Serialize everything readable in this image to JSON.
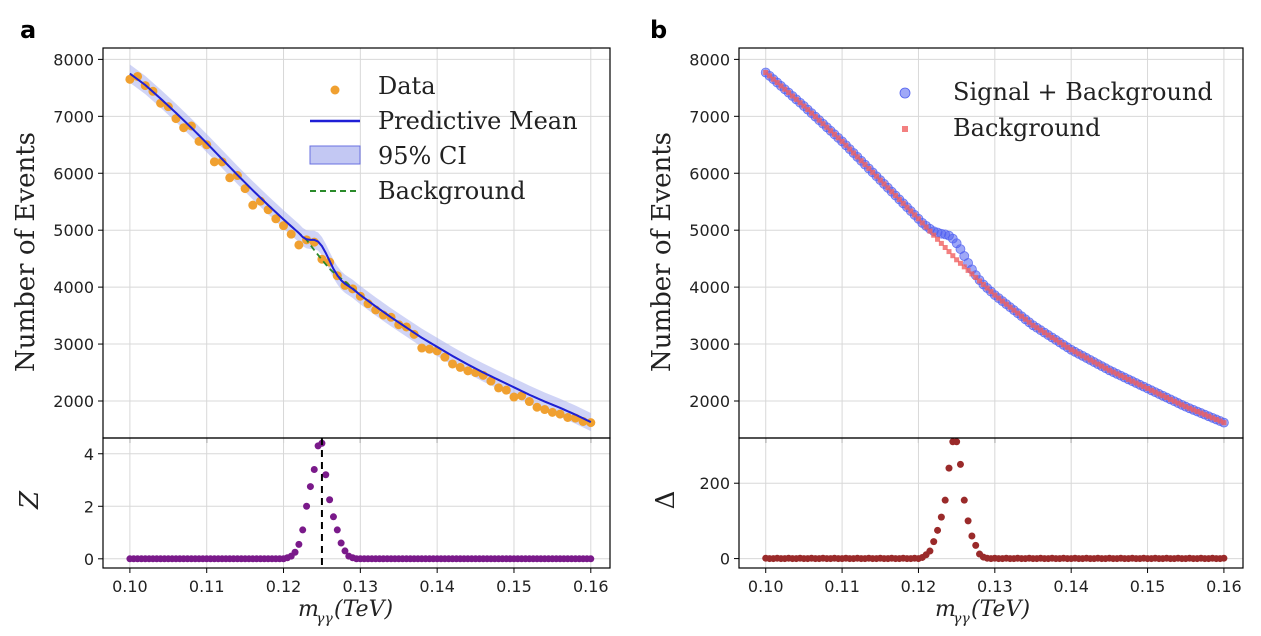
{
  "chart_data": [
    {
      "panel": "a",
      "type": "scatter+line",
      "subplots": [
        {
          "id": "top",
          "ylabel": "Number of Events",
          "xlim": [
            0.0965,
            0.1625
          ],
          "ylim": [
            1350,
            8200
          ],
          "yticks": [
            2000,
            3000,
            4000,
            5000,
            6000,
            7000,
            8000
          ],
          "legend": {
            "placement": "top-right",
            "entries": [
              {
                "label": "Data",
                "kind": "dot",
                "color": "#f0a030"
              },
              {
                "label": "Predictive Mean",
                "kind": "line",
                "color": "#1f1fd6"
              },
              {
                "label": "95% CI",
                "kind": "band",
                "color": "#aab0ee"
              },
              {
                "label": "Background",
                "kind": "dashed",
                "color": "#2a8a2a"
              }
            ]
          },
          "series": [
            {
              "name": "Data",
              "kind": "scatter",
              "color": "#f0a030",
              "x": [
                0.1,
                0.101,
                0.102,
                0.103,
                0.104,
                0.105,
                0.106,
                0.107,
                0.108,
                0.109,
                0.11,
                0.111,
                0.112,
                0.113,
                0.114,
                0.115,
                0.116,
                0.117,
                0.118,
                0.119,
                0.12,
                0.121,
                0.122,
                0.123,
                0.124,
                0.125,
                0.126,
                0.127,
                0.128,
                0.129,
                0.13,
                0.131,
                0.132,
                0.133,
                0.134,
                0.135,
                0.136,
                0.137,
                0.138,
                0.139,
                0.14,
                0.141,
                0.142,
                0.143,
                0.144,
                0.145,
                0.146,
                0.147,
                0.148,
                0.149,
                0.15,
                0.151,
                0.152,
                0.153,
                0.154,
                0.155,
                0.156,
                0.157,
                0.158,
                0.159,
                0.16
              ],
              "y": [
                7650,
                7700,
                7540,
                7440,
                7230,
                7170,
                6960,
                6800,
                6830,
                6560,
                6500,
                6200,
                6200,
                5920,
                5960,
                5730,
                5440,
                5510,
                5360,
                5200,
                5080,
                4930,
                4740,
                4830,
                4790,
                4490,
                4440,
                4200,
                4030,
                3970,
                3840,
                3710,
                3600,
                3510,
                3470,
                3340,
                3300,
                3170,
                2930,
                2910,
                2880,
                2770,
                2650,
                2590,
                2530,
                2500,
                2450,
                2350,
                2230,
                2190,
                2070,
                2090,
                1990,
                1890,
                1850,
                1800,
                1770,
                1710,
                1700,
                1640,
                1620
              ]
            },
            {
              "name": "Predictive Mean",
              "kind": "line",
              "color": "#1f1fd6",
              "x": [
                0.1,
                0.102,
                0.104,
                0.106,
                0.108,
                0.11,
                0.112,
                0.114,
                0.116,
                0.118,
                0.12,
                0.121,
                0.122,
                0.1225,
                0.123,
                0.1235,
                0.124,
                0.1245,
                0.125,
                0.1255,
                0.126,
                0.1265,
                0.127,
                0.1275,
                0.128,
                0.129,
                0.13,
                0.132,
                0.134,
                0.136,
                0.138,
                0.14,
                0.142,
                0.144,
                0.146,
                0.148,
                0.15,
                0.152,
                0.154,
                0.156,
                0.158,
                0.16
              ],
              "y": [
                7750,
                7550,
                7310,
                7060,
                6800,
                6530,
                6250,
                5970,
                5700,
                5440,
                5190,
                5070,
                4950,
                4880,
                4840,
                4830,
                4830,
                4800,
                4720,
                4600,
                4460,
                4320,
                4210,
                4120,
                4060,
                3970,
                3860,
                3660,
                3470,
                3290,
                3110,
                2950,
                2790,
                2640,
                2500,
                2370,
                2240,
                2110,
                1990,
                1880,
                1760,
                1630
              ]
            },
            {
              "name": "Background",
              "kind": "dashed",
              "color": "#2a8a2a",
              "x": [
                0.1,
                0.102,
                0.104,
                0.106,
                0.108,
                0.11,
                0.112,
                0.114,
                0.116,
                0.118,
                0.12,
                0.121,
                0.122,
                0.123,
                0.124,
                0.125,
                0.126,
                0.127,
                0.128,
                0.13,
                0.132,
                0.134,
                0.136,
                0.138,
                0.14,
                0.142,
                0.144,
                0.146,
                0.148,
                0.15,
                0.152,
                0.154,
                0.156,
                0.158,
                0.16
              ],
              "y": [
                7750,
                7550,
                7310,
                7060,
                6800,
                6530,
                6250,
                5970,
                5700,
                5440,
                5190,
                5070,
                4950,
                4830,
                4650,
                4480,
                4320,
                4200,
                4100,
                3860,
                3660,
                3470,
                3290,
                3110,
                2950,
                2790,
                2640,
                2500,
                2370,
                2240,
                2110,
                1990,
                1880,
                1760,
                1630
              ]
            },
            {
              "name": "95% CI",
              "kind": "band",
              "color": "#aab0ee",
              "halfwidth": 160
            }
          ]
        },
        {
          "id": "bottom",
          "ylabel": "Z",
          "xlabel": "m_γγ(TeV)",
          "xlim": [
            0.0965,
            0.1625
          ],
          "ylim": [
            -0.35,
            4.6
          ],
          "yticks": [
            0,
            2,
            4
          ],
          "xticks": [
            0.1,
            0.11,
            0.12,
            0.13,
            0.14,
            0.15,
            0.16
          ],
          "xtick_labels": [
            "0.10",
            "0.11",
            "0.12",
            "0.13",
            "0.14",
            "0.15",
            "0.16"
          ],
          "vline_x": 0.125,
          "series": [
            {
              "name": "Z",
              "kind": "scatter",
              "color": "#7a1a8a",
              "peak": [
                [
                  0.1205,
                  0.04
                ],
                [
                  0.121,
                  0.1
                ],
                [
                  0.1215,
                  0.25
                ],
                [
                  0.122,
                  0.55
                ],
                [
                  0.1225,
                  1.1
                ],
                [
                  0.123,
                  2.0
                ],
                [
                  0.1235,
                  2.75
                ],
                [
                  0.124,
                  3.4
                ],
                [
                  0.1245,
                  4.3
                ],
                [
                  0.125,
                  4.4
                ],
                [
                  0.1255,
                  3.2
                ],
                [
                  0.126,
                  2.25
                ],
                [
                  0.1265,
                  1.6
                ],
                [
                  0.127,
                  1.1
                ],
                [
                  0.1275,
                  0.6
                ],
                [
                  0.128,
                  0.3
                ],
                [
                  0.1285,
                  0.1
                ],
                [
                  0.129,
                  0.04
                ]
              ]
            }
          ]
        }
      ]
    },
    {
      "panel": "b",
      "type": "scatter",
      "subplots": [
        {
          "id": "top",
          "ylabel": "Number of Events",
          "xlim": [
            0.0965,
            0.1625
          ],
          "ylim": [
            1350,
            8200
          ],
          "yticks": [
            2000,
            3000,
            4000,
            5000,
            6000,
            7000,
            8000
          ],
          "legend": {
            "placement": "top-right",
            "entries": [
              {
                "label": "Signal + Background",
                "kind": "circle",
                "color": "#5060f0"
              },
              {
                "label": "Background",
                "kind": "square",
                "color": "#f06060"
              }
            ]
          },
          "series": [
            {
              "name": "Signal + Background",
              "kind": "scatter",
              "color": "#5060f0",
              "x_start": 0.1,
              "x_end": 0.16,
              "x_step": 0.0005,
              "bump": [
                [
                  0.121,
                  20
                ],
                [
                  0.1215,
                  40
                ],
                [
                  0.122,
                  70
                ],
                [
                  0.1225,
                  120
                ],
                [
                  0.123,
                  170
                ],
                [
                  0.1235,
                  230
                ],
                [
                  0.124,
                  280
                ],
                [
                  0.1245,
                  300
                ],
                [
                  0.125,
                  290
                ],
                [
                  0.1255,
                  250
                ],
                [
                  0.126,
                  190
                ],
                [
                  0.1265,
                  130
                ],
                [
                  0.127,
                  80
                ],
                [
                  0.1275,
                  40
                ],
                [
                  0.128,
                  15
                ]
              ]
            },
            {
              "name": "Background",
              "kind": "scatter",
              "color": "#f06060",
              "x_start": 0.1,
              "x_end": 0.16,
              "x_step": 0.0005
            }
          ],
          "background_curve": {
            "x": [
              0.1,
              0.105,
              0.11,
              0.115,
              0.12,
              0.125,
              0.13,
              0.135,
              0.14,
              0.145,
              0.15,
              0.155,
              0.16
            ],
            "y": [
              7770,
              7180,
              6560,
              5880,
              5200,
              4480,
              3860,
              3330,
              2900,
              2540,
              2220,
              1900,
              1620
            ]
          }
        },
        {
          "id": "bottom",
          "ylabel": "Δ",
          "xlabel": "m_γγ(TeV)",
          "xlim": [
            0.0965,
            0.1625
          ],
          "ylim": [
            -25,
            320
          ],
          "yticks": [
            0,
            200
          ],
          "xticks": [
            0.1,
            0.11,
            0.12,
            0.13,
            0.14,
            0.15,
            0.16
          ],
          "xtick_labels": [
            "0.10",
            "0.11",
            "0.12",
            "0.13",
            "0.14",
            "0.15",
            "0.16"
          ],
          "series": [
            {
              "name": "Δ",
              "kind": "scatter",
              "color": "#9a2a2a",
              "x_start": 0.1,
              "x_end": 0.16,
              "x_step": 0.0005,
              "peak": [
                [
                  0.1205,
                  3
                ],
                [
                  0.121,
                  10
                ],
                [
                  0.1215,
                  20
                ],
                [
                  0.122,
                  45
                ],
                [
                  0.1225,
                  75
                ],
                [
                  0.123,
                  110
                ],
                [
                  0.1235,
                  155
                ],
                [
                  0.124,
                  240
                ],
                [
                  0.1245,
                  310
                ],
                [
                  0.125,
                  310
                ],
                [
                  0.1255,
                  250
                ],
                [
                  0.126,
                  155
                ],
                [
                  0.1265,
                  100
                ],
                [
                  0.127,
                  60
                ],
                [
                  0.1275,
                  35
                ],
                [
                  0.128,
                  12
                ],
                [
                  0.1285,
                  4
                ],
                [
                  0.129,
                  1
                ]
              ]
            }
          ]
        }
      ]
    }
  ],
  "labels": {
    "panel_a": "a",
    "panel_b": "b",
    "ylabel_events": "Number of Events",
    "ylabel_z": "Z",
    "ylabel_delta": "Δ",
    "xlabel_main": "m",
    "xlabel_sub": "γγ",
    "xlabel_unit": "(TeV)"
  }
}
